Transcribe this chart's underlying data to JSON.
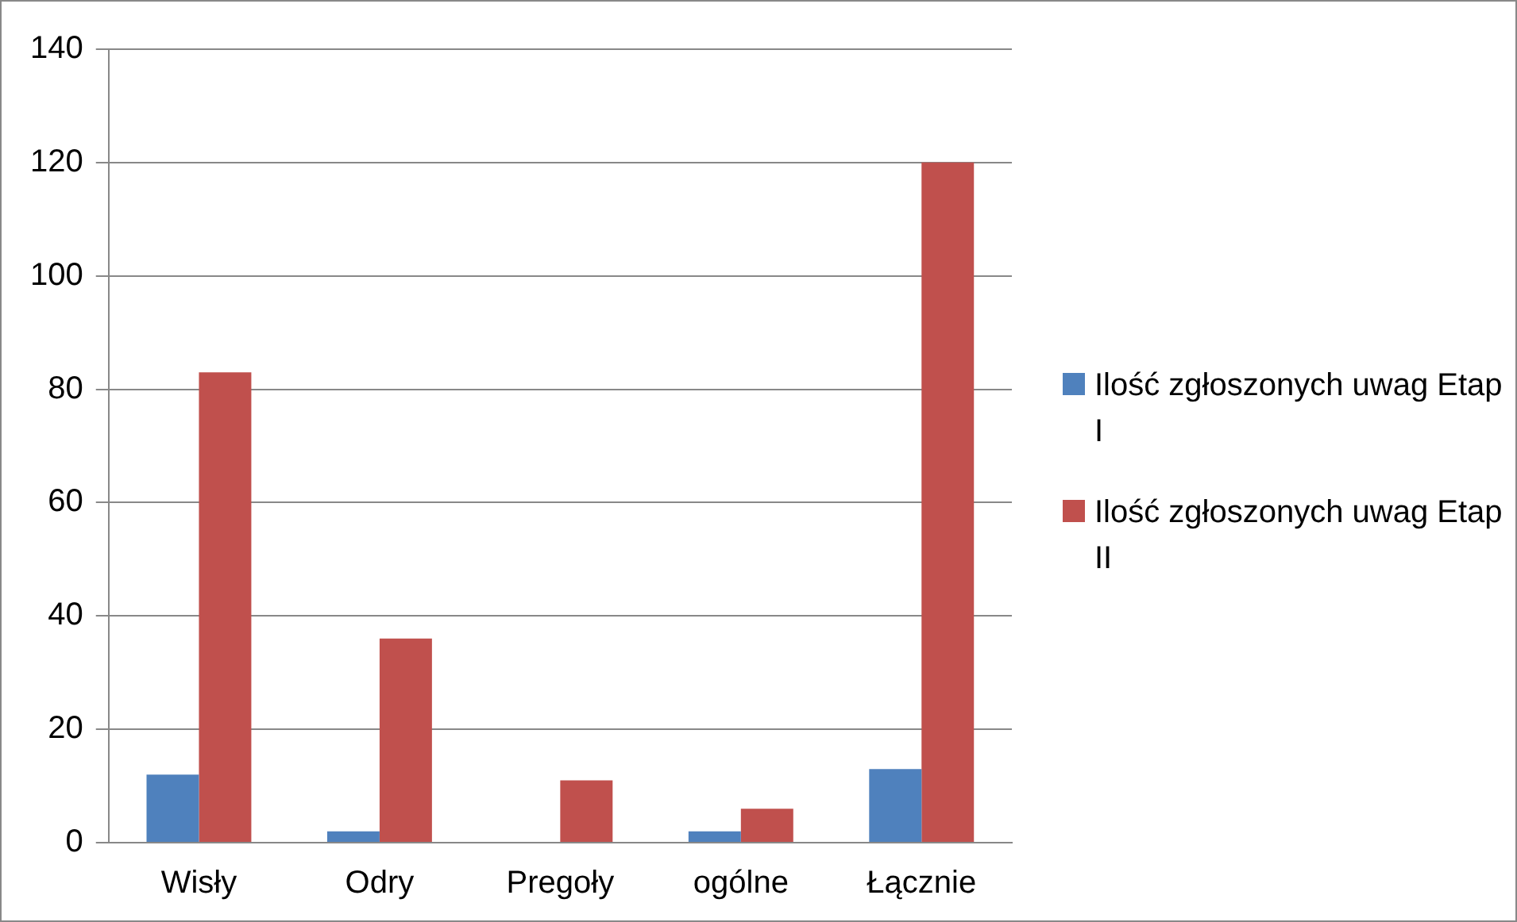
{
  "chart_data": {
    "type": "bar",
    "categories": [
      "Wisły",
      "Odry",
      "Pregoły",
      "ogólne",
      "Łącznie"
    ],
    "series": [
      {
        "name": "Ilość zgłoszonych uwag Etap I",
        "color": "#4f81bd",
        "values": [
          12,
          2,
          0,
          2,
          13
        ]
      },
      {
        "name": "Ilość zgłoszonych uwag Etap II",
        "color": "#c0504d",
        "values": [
          83,
          36,
          11,
          6,
          120
        ]
      }
    ],
    "ylim": [
      0,
      140
    ],
    "yticks": [
      0,
      20,
      40,
      60,
      80,
      100,
      120,
      140
    ],
    "grid": "y",
    "legend": "right"
  }
}
